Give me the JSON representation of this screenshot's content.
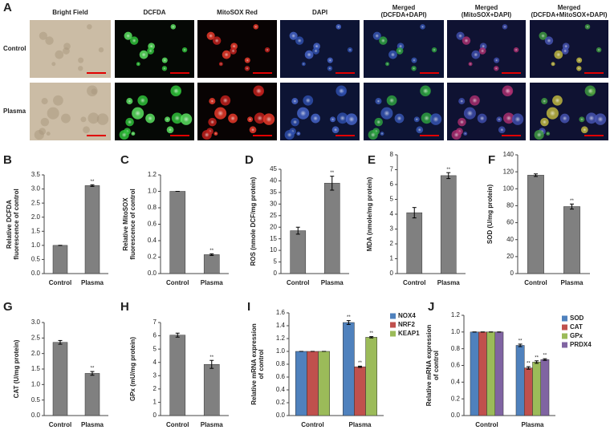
{
  "panel_a": {
    "label": "A",
    "columns": [
      [
        "Bright Field"
      ],
      [
        "DCFDA"
      ],
      [
        "MitoSOX Red"
      ],
      [
        "DAPI"
      ],
      [
        "Merged",
        "(DCFDA+DAPI)"
      ],
      [
        "Merged",
        "(MitoSOX+DAPI)"
      ],
      [
        "Merged",
        "(DCFDA+MitoSOX+DAPI)"
      ]
    ],
    "rows": [
      "Control",
      "Plasma"
    ]
  },
  "chart_data": [
    {
      "type": "bar",
      "panel": "B",
      "ylabel": [
        "Relative DCFDA",
        "fluorescence of control"
      ],
      "categories": [
        "Control",
        "Plasma"
      ],
      "values": [
        1.0,
        3.12
      ],
      "errors": [
        0,
        0.03
      ],
      "sig": [
        null,
        "**"
      ],
      "color": "#808080",
      "ylim": [
        0,
        3.5
      ],
      "yticks": [
        {
          "value": 0,
          "label": "0.0"
        },
        {
          "value": 0.5,
          "label": "0.5"
        },
        {
          "value": 1,
          "label": "1.0"
        },
        {
          "value": 1.5,
          "label": "1.5"
        },
        {
          "value": 2,
          "label": "2.0"
        },
        {
          "value": 2.5,
          "label": "2.5"
        },
        {
          "value": 3,
          "label": "3.0"
        },
        {
          "value": 3.5,
          "label": "3.5"
        }
      ]
    },
    {
      "type": "bar",
      "panel": "C",
      "ylabel": [
        "Relative MitoSOX",
        "fluorescence of control"
      ],
      "categories": [
        "Control",
        "Plasma"
      ],
      "values": [
        1.0,
        0.23
      ],
      "errors": [
        0,
        0.01
      ],
      "sig": [
        null,
        "**"
      ],
      "color": "#808080",
      "ylim": [
        0,
        1.2
      ],
      "yticks": [
        {
          "value": 0,
          "label": "0.0"
        },
        {
          "value": 0.2,
          "label": "0.2"
        },
        {
          "value": 0.4,
          "label": "0.4"
        },
        {
          "value": 0.6,
          "label": "0.6"
        },
        {
          "value": 0.8,
          "label": "0.8"
        },
        {
          "value": 1,
          "label": "1.0"
        },
        {
          "value": 1.2,
          "label": "1.2"
        }
      ]
    },
    {
      "type": "bar",
      "panel": "D",
      "ylabel": [
        "ROS (nmole DCF/mg protein)"
      ],
      "categories": [
        "Control",
        "Plasma"
      ],
      "values": [
        18.5,
        39
      ],
      "errors": [
        1.5,
        3
      ],
      "sig": [
        null,
        "**"
      ],
      "color": "#808080",
      "ylim": [
        0,
        45
      ],
      "yticks": [
        0,
        5,
        10,
        15,
        20,
        25,
        30,
        35,
        40,
        45
      ]
    },
    {
      "type": "bar",
      "panel": "E",
      "ylabel": [
        "MDA (nmole/mg protein)"
      ],
      "categories": [
        "Control",
        "Plasma"
      ],
      "values": [
        4.1,
        6.6
      ],
      "errors": [
        0.35,
        0.2
      ],
      "sig": [
        null,
        "**"
      ],
      "color": "#808080",
      "ylim": [
        0,
        8
      ],
      "yticks": [
        0,
        1,
        2,
        3,
        4,
        5,
        6,
        7,
        8
      ]
    },
    {
      "type": "bar",
      "panel": "F",
      "ylabel": [
        "SOD (U/mg protein)"
      ],
      "categories": [
        "Control",
        "Plasma"
      ],
      "values": [
        116,
        79
      ],
      "errors": [
        1.5,
        3
      ],
      "sig": [
        null,
        "**"
      ],
      "color": "#808080",
      "ylim": [
        0,
        140
      ],
      "yticks": [
        0,
        20,
        40,
        60,
        80,
        100,
        120,
        140
      ]
    },
    {
      "type": "bar",
      "panel": "G",
      "ylabel": [
        "CAT (U/mg protein)"
      ],
      "categories": [
        "Control",
        "Plasma"
      ],
      "values": [
        2.36,
        1.36
      ],
      "errors": [
        0.06,
        0.06
      ],
      "sig": [
        null,
        "**"
      ],
      "color": "#808080",
      "ylim": [
        0,
        3
      ],
      "yticks": [
        {
          "value": 0,
          "label": "0.0"
        },
        {
          "value": 0.5,
          "label": "0.5"
        },
        {
          "value": 1,
          "label": "1.0"
        },
        {
          "value": 1.5,
          "label": "1.5"
        },
        {
          "value": 2,
          "label": "2.0"
        },
        {
          "value": 2.5,
          "label": "2.5"
        },
        {
          "value": 3,
          "label": "3.0"
        }
      ]
    },
    {
      "type": "bar",
      "panel": "H",
      "ylabel": [
        "GPx (mU/mg protein)"
      ],
      "categories": [
        "Control",
        "Plasma"
      ],
      "values": [
        6.05,
        3.85
      ],
      "errors": [
        0.15,
        0.3
      ],
      "sig": [
        null,
        "**"
      ],
      "color": "#808080",
      "ylim": [
        0,
        7
      ],
      "yticks": [
        0,
        1,
        2,
        3,
        4,
        5,
        6,
        7
      ]
    },
    {
      "type": "bar",
      "panel": "I",
      "ylabel": [
        "Relative mRNA expression",
        "of control"
      ],
      "categories": [
        "Control",
        "Plasma"
      ],
      "ylim": [
        0,
        1.6
      ],
      "yticks": [
        {
          "value": 0,
          "label": "0.0"
        },
        {
          "value": 0.2,
          "label": "0.2"
        },
        {
          "value": 0.4,
          "label": "0.4"
        },
        {
          "value": 0.6,
          "label": "0.6"
        },
        {
          "value": 0.8,
          "label": "0.8"
        },
        {
          "value": 1,
          "label": "1.0"
        },
        {
          "value": 1.2,
          "label": "1.2"
        },
        {
          "value": 1.4,
          "label": "1.4"
        },
        {
          "value": 1.6,
          "label": "1.6"
        }
      ],
      "series": [
        {
          "name": "NOX4",
          "color": "#4f81bd",
          "values": [
            1,
            1.45
          ],
          "errors": [
            0,
            0.03
          ],
          "sig": [
            null,
            "**"
          ]
        },
        {
          "name": "NRF2",
          "color": "#c0504d",
          "values": [
            1,
            0.76
          ],
          "errors": [
            0,
            0.01
          ],
          "sig": [
            null,
            "**"
          ]
        },
        {
          "name": "KEAP1",
          "color": "#9bbb59",
          "values": [
            1,
            1.22
          ],
          "errors": [
            0,
            0.01
          ],
          "sig": [
            null,
            "**"
          ]
        }
      ]
    },
    {
      "type": "bar",
      "panel": "J",
      "ylabel": [
        "Relative mRNA expression",
        "of control"
      ],
      "categories": [
        "Control",
        "Plasma"
      ],
      "ylim": [
        0,
        1.2
      ],
      "yticks": [
        {
          "value": 0,
          "label": "0.0"
        },
        {
          "value": 0.2,
          "label": "0.2"
        },
        {
          "value": 0.4,
          "label": "0.4"
        },
        {
          "value": 0.6,
          "label": "0.6"
        },
        {
          "value": 0.8,
          "label": "0.8"
        },
        {
          "value": 1,
          "label": "1.0"
        },
        {
          "value": 1.2,
          "label": "1.2"
        }
      ],
      "series": [
        {
          "name": "SOD",
          "color": "#4f81bd",
          "values": [
            1,
            0.84
          ],
          "errors": [
            0,
            0.015
          ],
          "sig": [
            null,
            "**"
          ]
        },
        {
          "name": "CAT",
          "color": "#c0504d",
          "values": [
            1,
            0.57
          ],
          "errors": [
            0,
            0.015
          ],
          "sig": [
            null,
            "**"
          ]
        },
        {
          "name": "GPx",
          "color": "#9bbb59",
          "values": [
            1,
            0.64
          ],
          "errors": [
            0,
            0.015
          ],
          "sig": [
            null,
            "**"
          ]
        },
        {
          "name": "PRDX4",
          "color": "#8064a2",
          "values": [
            1,
            0.67
          ],
          "errors": [
            0,
            0.01
          ],
          "sig": [
            null,
            "**"
          ]
        }
      ]
    }
  ]
}
